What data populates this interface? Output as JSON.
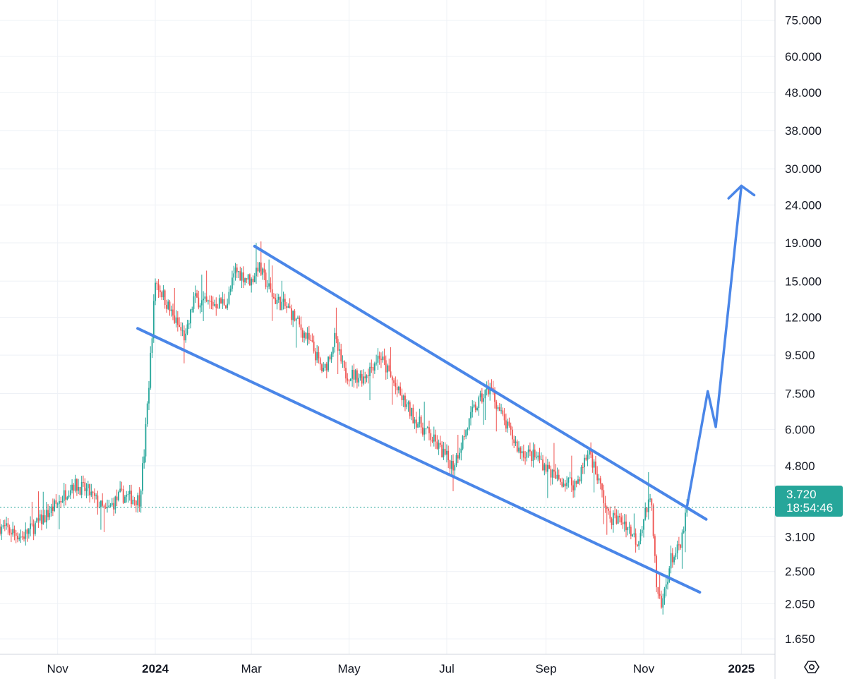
{
  "chart_data": {
    "type": "candlestick",
    "y_scale": "log",
    "ylim": [
      1.5,
      85
    ],
    "y_ticks": [
      "75.000",
      "60.000",
      "48.000",
      "38.000",
      "30.000",
      "24.000",
      "19.000",
      "15.000",
      "12.000",
      "9.500",
      "7.500",
      "6.000",
      "4.800",
      "3.100",
      "2.500",
      "2.050",
      "1.650"
    ],
    "x_ticks": [
      {
        "label": "Nov",
        "date": "2023-11-01",
        "bold": false
      },
      {
        "label": "2024",
        "date": "2024-01-01",
        "bold": true
      },
      {
        "label": "Mar",
        "date": "2024-03-01",
        "bold": false
      },
      {
        "label": "May",
        "date": "2024-05-01",
        "bold": false
      },
      {
        "label": "Jul",
        "date": "2024-07-01",
        "bold": false
      },
      {
        "label": "Sep",
        "date": "2024-09-01",
        "bold": false
      },
      {
        "label": "Nov",
        "date": "2024-11-01",
        "bold": false
      },
      {
        "label": "2025",
        "date": "2025-01-01",
        "bold": true
      }
    ],
    "xlim": [
      "2023-09-26",
      "2025-01-22"
    ],
    "grid": true,
    "up_color": "#26a69a",
    "down_color": "#ef5350",
    "last_price": {
      "value": "3.720",
      "countdown": "18:54:46",
      "color": "#26a69a"
    },
    "price_path": [
      [
        "2023-09-26",
        3.3
      ],
      [
        "2023-10-10",
        3.1
      ],
      [
        "2023-10-24",
        3.5
      ],
      [
        "2023-11-03",
        3.9
      ],
      [
        "2023-11-10",
        4.3
      ],
      [
        "2023-11-20",
        4.1
      ],
      [
        "2023-12-01",
        3.6
      ],
      [
        "2023-12-10",
        4.0
      ],
      [
        "2023-12-22",
        3.9
      ],
      [
        "2023-12-25",
        5.2
      ],
      [
        "2023-12-28",
        8.0
      ],
      [
        "2023-12-30",
        11.0
      ],
      [
        "2024-01-01",
        15.0
      ],
      [
        "2024-01-05",
        14.0
      ],
      [
        "2024-01-12",
        12.0
      ],
      [
        "2024-01-20",
        10.5
      ],
      [
        "2024-01-25",
        13.5
      ],
      [
        "2024-02-02",
        13.0
      ],
      [
        "2024-02-15",
        13.2
      ],
      [
        "2024-02-20",
        16.0
      ],
      [
        "2024-03-01",
        15.0
      ],
      [
        "2024-03-05",
        16.5
      ],
      [
        "2024-03-15",
        13.5
      ],
      [
        "2024-03-25",
        12.5
      ],
      [
        "2024-04-08",
        10.0
      ],
      [
        "2024-04-15",
        8.5
      ],
      [
        "2024-04-22",
        10.5
      ],
      [
        "2024-04-28",
        8.5
      ],
      [
        "2024-05-10",
        8.3
      ],
      [
        "2024-05-20",
        9.5
      ],
      [
        "2024-06-01",
        7.5
      ],
      [
        "2024-06-10",
        6.5
      ],
      [
        "2024-06-20",
        5.8
      ],
      [
        "2024-06-30",
        5.1
      ],
      [
        "2024-07-05",
        4.8
      ],
      [
        "2024-07-10",
        5.5
      ],
      [
        "2024-07-18",
        6.8
      ],
      [
        "2024-07-28",
        7.8
      ],
      [
        "2024-08-05",
        6.4
      ],
      [
        "2024-08-15",
        5.3
      ],
      [
        "2024-08-28",
        5.0
      ],
      [
        "2024-09-08",
        4.4
      ],
      [
        "2024-09-20",
        4.3
      ],
      [
        "2024-09-28",
        5.3
      ],
      [
        "2024-10-05",
        4.2
      ],
      [
        "2024-10-10",
        3.5
      ],
      [
        "2024-10-20",
        3.4
      ],
      [
        "2024-10-28",
        3.0
      ],
      [
        "2024-11-02",
        3.6
      ],
      [
        "2024-11-06",
        3.9
      ],
      [
        "2024-11-09",
        2.2
      ],
      [
        "2024-11-12",
        2.0
      ],
      [
        "2024-11-18",
        2.7
      ],
      [
        "2024-11-24",
        2.9
      ],
      [
        "2024-11-28",
        3.72
      ]
    ],
    "channel_upper": [
      [
        "2024-03-03",
        18.6
      ],
      [
        "2024-12-10",
        3.45
      ]
    ],
    "channel_lower": [
      [
        "2023-12-21",
        11.2
      ],
      [
        "2024-12-06",
        2.2
      ]
    ],
    "projection": [
      [
        "2024-11-28",
        3.72
      ],
      [
        "2024-12-11",
        7.6
      ],
      [
        "2024-12-16",
        6.1
      ],
      [
        "2025-01-01",
        27.0
      ]
    ],
    "projection_arrowhead": [
      [
        "2024-12-24",
        25.0
      ],
      [
        "2025-01-01",
        27.0
      ],
      [
        "2025-01-09",
        25.5
      ]
    ],
    "line_color": "#4a86e8"
  },
  "toolbar": {
    "settings_icon": "settings-icon"
  }
}
